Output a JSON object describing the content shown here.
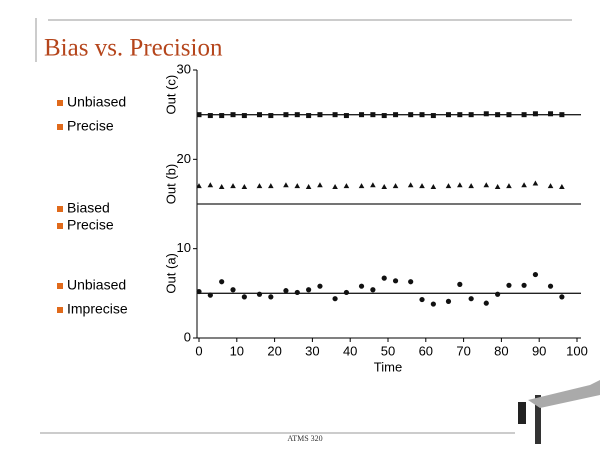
{
  "slide": {
    "title": "Bias vs. Precision",
    "bullets": [
      "Unbiased",
      "Precise",
      "Biased",
      "Precise",
      "Unbiased",
      "Imprecise"
    ],
    "footer": "ATMS 320"
  },
  "chart_data": {
    "type": "scatter",
    "x_label": "Time",
    "x": [
      0,
      3,
      6,
      9,
      12,
      16,
      19,
      23,
      26,
      29,
      32,
      36,
      39,
      43,
      46,
      49,
      52,
      56,
      59,
      62,
      66,
      69,
      72,
      76,
      79,
      82,
      86,
      89,
      93,
      96
    ],
    "series": [
      {
        "name": "Out (a)",
        "color": "#111111",
        "marker": "circle",
        "values": [
          5.2,
          4.8,
          6.3,
          5.4,
          4.6,
          4.9,
          4.6,
          5.3,
          5.1,
          5.4,
          5.8,
          4.4,
          5.1,
          5.8,
          5.4,
          6.7,
          6.4,
          6.3,
          4.3,
          3.8,
          4.1,
          6.0,
          4.4,
          3.9,
          4.9,
          5.9,
          5.9,
          7.1,
          5.8,
          4.6
        ]
      },
      {
        "name": "Out (b)",
        "color": "#111111",
        "marker": "triangle",
        "values": [
          17.0,
          17.1,
          16.9,
          17.0,
          16.9,
          17.0,
          17.0,
          17.1,
          17.0,
          16.9,
          17.1,
          16.9,
          17.0,
          17.0,
          17.1,
          16.9,
          17.0,
          17.1,
          17.0,
          16.9,
          17.0,
          17.1,
          17.0,
          17.1,
          16.9,
          17.0,
          17.1,
          17.3,
          17.0,
          16.9
        ]
      },
      {
        "name": "Out (c)",
        "color": "#111111",
        "marker": "square",
        "values": [
          25.0,
          24.9,
          24.9,
          25.0,
          24.9,
          25.0,
          24.9,
          25.0,
          25.0,
          24.9,
          25.0,
          25.0,
          24.9,
          25.0,
          25.0,
          24.9,
          25.0,
          25.0,
          25.0,
          24.9,
          25.0,
          25.0,
          25.0,
          25.1,
          25.0,
          25.0,
          25.0,
          25.1,
          25.1,
          25.0
        ]
      }
    ],
    "reference_lines": [
      5,
      15,
      25
    ],
    "xlim": [
      0,
      100
    ],
    "xticks": [
      0,
      10,
      20,
      30,
      40,
      50,
      60,
      70,
      80,
      90,
      100
    ],
    "ylim": [
      0,
      30
    ],
    "yticks": [
      0,
      10,
      20,
      30
    ]
  }
}
